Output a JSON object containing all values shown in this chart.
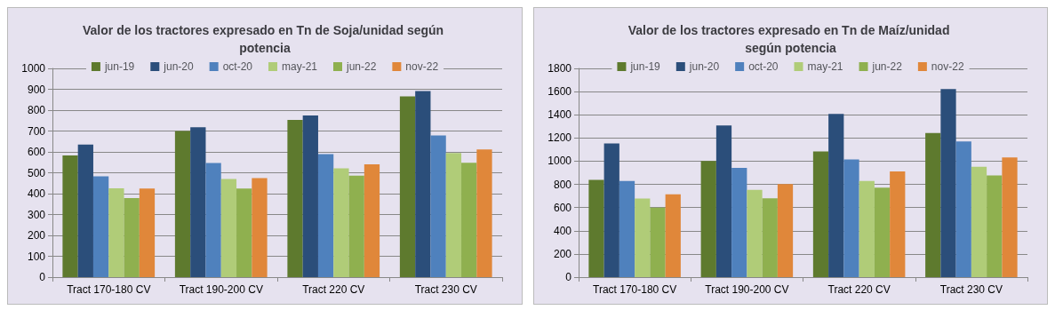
{
  "chart_data": [
    {
      "type": "bar",
      "title": "Valor de los tractores expresado en Tn de Soja/unidad según potencia",
      "categories": [
        "Tract 170-180 CV",
        "Tract 190-200 CV",
        "Tract 220 CV",
        "Tract 230 CV"
      ],
      "series": [
        {
          "name": "jun-19",
          "color": "#5e7a2e",
          "values": [
            583,
            700,
            753,
            866
          ]
        },
        {
          "name": "jun-20",
          "color": "#2b4e7a",
          "values": [
            635,
            718,
            775,
            891
          ]
        },
        {
          "name": "oct-20",
          "color": "#4f81bd",
          "values": [
            483,
            547,
            589,
            679
          ]
        },
        {
          "name": "may-21",
          "color": "#b0cc78",
          "values": [
            426,
            470,
            521,
            595
          ]
        },
        {
          "name": "jun-22",
          "color": "#8fb04f",
          "values": [
            379,
            425,
            486,
            548
          ]
        },
        {
          "name": "nov-22",
          "color": "#e0873a",
          "values": [
            425,
            475,
            540,
            612
          ]
        }
      ],
      "ylim": [
        0,
        1000
      ],
      "yticks": [
        0,
        100,
        200,
        300,
        400,
        500,
        600,
        700,
        800,
        900,
        1000
      ],
      "grid": "y",
      "legend": "top"
    },
    {
      "type": "bar",
      "title": "Valor de los tractores expresado en Tn de Maíz/unidad según potencia",
      "categories": [
        "Tract 170-180 CV",
        "Tract 190-200 CV",
        "Tract 220 CV",
        "Tract 230 CV"
      ],
      "series": [
        {
          "name": "jun-19",
          "color": "#5e7a2e",
          "values": [
            838,
            1002,
            1083,
            1243
          ]
        },
        {
          "name": "jun-20",
          "color": "#2b4e7a",
          "values": [
            1152,
            1307,
            1408,
            1622
          ]
        },
        {
          "name": "oct-20",
          "color": "#4f81bd",
          "values": [
            830,
            943,
            1015,
            1170
          ]
        },
        {
          "name": "may-21",
          "color": "#b0cc78",
          "values": [
            678,
            752,
            830,
            951
          ]
        },
        {
          "name": "jun-22",
          "color": "#8fb04f",
          "values": [
            600,
            680,
            771,
            877
          ]
        },
        {
          "name": "nov-22",
          "color": "#e0873a",
          "values": [
            715,
            803,
            911,
            1032
          ]
        }
      ],
      "ylim": [
        0,
        1800
      ],
      "yticks": [
        0,
        200,
        400,
        600,
        800,
        1000,
        1200,
        1400,
        1600,
        1800
      ],
      "grid": "y",
      "legend": "top"
    }
  ]
}
